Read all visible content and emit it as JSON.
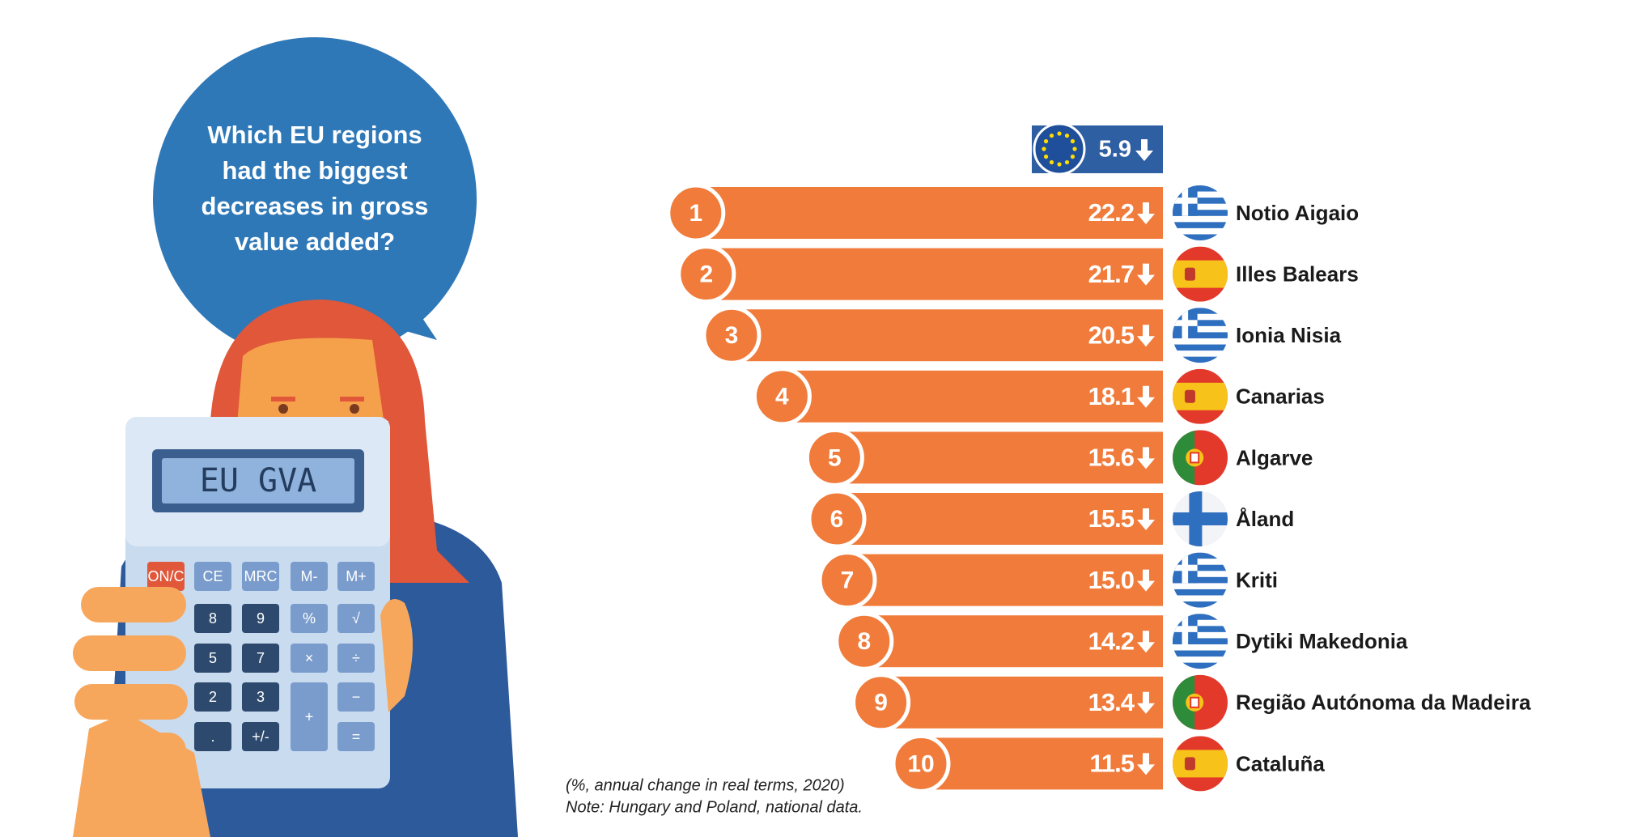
{
  "chart_data": {
    "type": "bar",
    "title": "Which EU regions had the biggest decreases in gross value added?",
    "eu_value": 5.9,
    "ranks": [
      1,
      2,
      3,
      4,
      5,
      6,
      7,
      8,
      9,
      10
    ],
    "categories": [
      "Notio Aigaio",
      "Illes Balears",
      "Ionia Nisia",
      "Canarias",
      "Algarve",
      "Åland",
      "Kriti",
      "Dytiki Makedonia",
      "Região Autónoma da Madeira",
      "Cataluña"
    ],
    "values": [
      22.2,
      21.7,
      20.5,
      18.1,
      15.6,
      15.5,
      15.0,
      14.2,
      13.4,
      11.5
    ],
    "value_labels": [
      "22.2",
      "21.7",
      "20.5",
      "18.1",
      "15.6",
      "15.5",
      "15.0",
      "14.2",
      "13.4",
      "11.5"
    ],
    "color": "#f07b3a",
    "eu_color": "#2e5fa3",
    "notes": [
      "(%, annual change in real terms, 2020)",
      "Note: Hungary and Poland, national data."
    ],
    "calculator": {
      "display": "EU GVA",
      "buttons": [
        "ON/C",
        "CE",
        "MRC",
        "M-",
        "M+",
        "8",
        "9",
        "%",
        "√",
        "5",
        "7",
        "×",
        "÷",
        "2",
        "3",
        "+",
        "−",
        ".",
        "+/-",
        "="
      ]
    }
  }
}
